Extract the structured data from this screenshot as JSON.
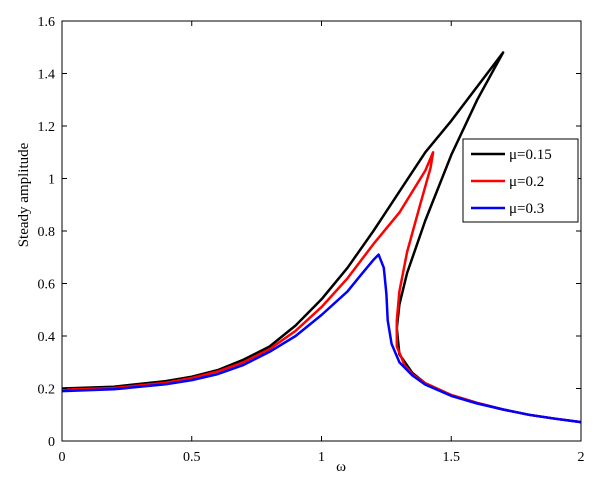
{
  "chart_data": {
    "type": "line",
    "title": "",
    "xlabel": "ω",
    "ylabel": "Steady amplitude",
    "xlim": [
      0,
      2
    ],
    "ylim": [
      0,
      1.6
    ],
    "xticks": [
      0,
      0.5,
      1,
      1.5,
      2
    ],
    "xtick_labels": [
      "0",
      "0.5",
      "1",
      "1.5",
      "2"
    ],
    "yticks": [
      0,
      0.2,
      0.4,
      0.6,
      0.8,
      1,
      1.2,
      1.4,
      1.6
    ],
    "ytick_labels": [
      "0",
      "0.2",
      "0.4",
      "0.6",
      "0.8",
      "1",
      "1.2",
      "1.4",
      "1.6"
    ],
    "grid": false,
    "legend_position": "right",
    "series": [
      {
        "name": "μ=0.15",
        "color": "#000000",
        "points": [
          [
            0,
            0.2
          ],
          [
            0.2,
            0.207
          ],
          [
            0.4,
            0.228
          ],
          [
            0.5,
            0.245
          ],
          [
            0.6,
            0.27
          ],
          [
            0.7,
            0.31
          ],
          [
            0.8,
            0.36
          ],
          [
            0.9,
            0.44
          ],
          [
            1.0,
            0.54
          ],
          [
            1.1,
            0.66
          ],
          [
            1.2,
            0.8
          ],
          [
            1.3,
            0.95
          ],
          [
            1.4,
            1.1
          ],
          [
            1.5,
            1.22
          ],
          [
            1.6,
            1.35
          ],
          [
            1.7,
            1.48
          ],
          [
            1.6,
            1.3
          ],
          [
            1.5,
            1.09
          ],
          [
            1.4,
            0.84
          ],
          [
            1.33,
            0.64
          ],
          [
            1.3,
            0.52
          ],
          [
            1.29,
            0.43
          ],
          [
            1.3,
            0.33
          ],
          [
            1.35,
            0.26
          ],
          [
            1.4,
            0.22
          ],
          [
            1.5,
            0.175
          ],
          [
            1.6,
            0.145
          ],
          [
            1.7,
            0.12
          ],
          [
            1.8,
            0.1
          ],
          [
            1.9,
            0.085
          ],
          [
            2.0,
            0.072
          ]
        ]
      },
      {
        "name": "μ=0.2",
        "color": "#ff0000",
        "points": [
          [
            0,
            0.195
          ],
          [
            0.2,
            0.202
          ],
          [
            0.4,
            0.222
          ],
          [
            0.5,
            0.24
          ],
          [
            0.6,
            0.265
          ],
          [
            0.7,
            0.3
          ],
          [
            0.8,
            0.35
          ],
          [
            0.9,
            0.42
          ],
          [
            1.0,
            0.51
          ],
          [
            1.1,
            0.62
          ],
          [
            1.2,
            0.75
          ],
          [
            1.3,
            0.87
          ],
          [
            1.4,
            1.03
          ],
          [
            1.43,
            1.1
          ],
          [
            1.42,
            1.04
          ],
          [
            1.38,
            0.9
          ],
          [
            1.33,
            0.72
          ],
          [
            1.3,
            0.57
          ],
          [
            1.29,
            0.46
          ],
          [
            1.29,
            0.36
          ],
          [
            1.32,
            0.29
          ],
          [
            1.35,
            0.255
          ],
          [
            1.4,
            0.22
          ],
          [
            1.5,
            0.175
          ],
          [
            1.6,
            0.145
          ],
          [
            1.7,
            0.12
          ],
          [
            1.8,
            0.1
          ],
          [
            1.9,
            0.085
          ],
          [
            2.0,
            0.072
          ]
        ]
      },
      {
        "name": "μ=0.3",
        "color": "#0000ff",
        "points": [
          [
            0,
            0.19
          ],
          [
            0.2,
            0.197
          ],
          [
            0.4,
            0.216
          ],
          [
            0.5,
            0.232
          ],
          [
            0.6,
            0.255
          ],
          [
            0.7,
            0.29
          ],
          [
            0.8,
            0.34
          ],
          [
            0.9,
            0.4
          ],
          [
            1.0,
            0.48
          ],
          [
            1.1,
            0.57
          ],
          [
            1.15,
            0.63
          ],
          [
            1.2,
            0.69
          ],
          [
            1.22,
            0.71
          ],
          [
            1.24,
            0.66
          ],
          [
            1.25,
            0.56
          ],
          [
            1.255,
            0.46
          ],
          [
            1.27,
            0.37
          ],
          [
            1.3,
            0.3
          ],
          [
            1.35,
            0.25
          ],
          [
            1.4,
            0.215
          ],
          [
            1.5,
            0.172
          ],
          [
            1.6,
            0.143
          ],
          [
            1.7,
            0.12
          ],
          [
            1.8,
            0.1
          ],
          [
            1.9,
            0.085
          ],
          [
            2.0,
            0.072
          ]
        ]
      }
    ]
  }
}
